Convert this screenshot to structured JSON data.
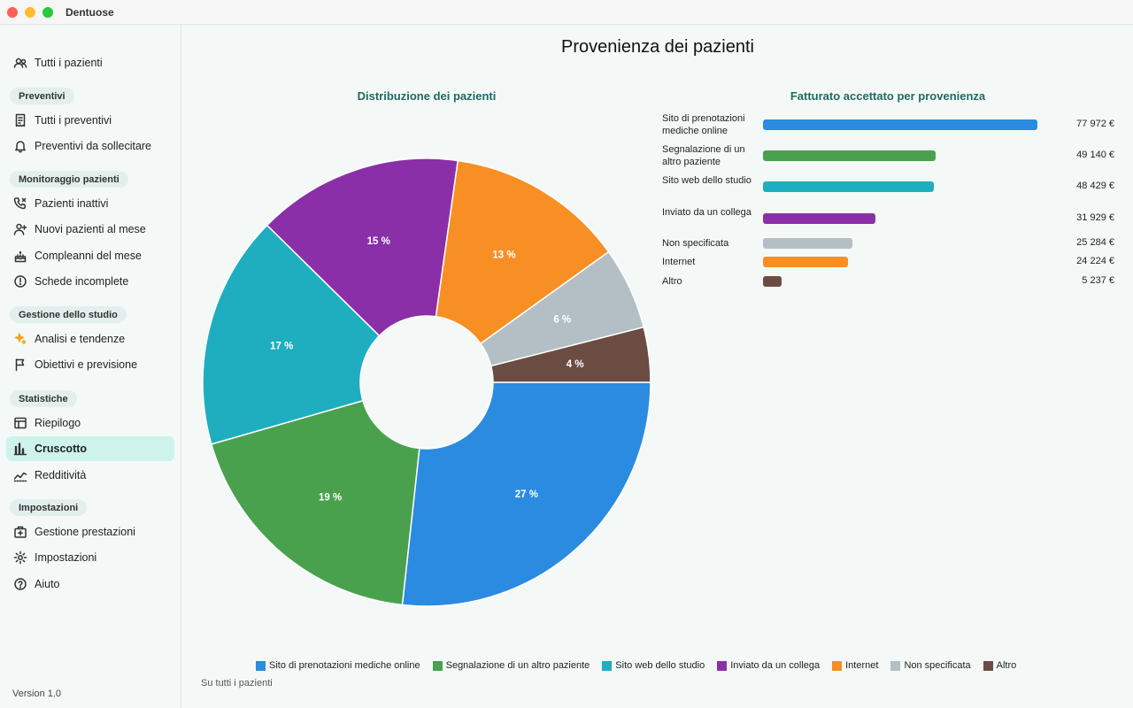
{
  "app": {
    "title": "Dentuose",
    "version": "Version 1.0"
  },
  "sidebar": {
    "top_item": {
      "label": "Tutti i pazienti",
      "icon": "people-icon"
    },
    "sections": [
      {
        "label": "Preventivi",
        "items": [
          {
            "label": "Tutti i preventivi",
            "icon": "receipt-icon"
          },
          {
            "label": "Preventivi da sollecitare",
            "icon": "bell-icon"
          }
        ]
      },
      {
        "label": "Monitoraggio pazienti",
        "items": [
          {
            "label": "Pazienti inattivi",
            "icon": "phone-icon"
          },
          {
            "label": "Nuovi pazienti al mese",
            "icon": "person-add-icon"
          },
          {
            "label": "Compleanni del mese",
            "icon": "cake-icon"
          },
          {
            "label": "Schede incomplete",
            "icon": "alert-circle-icon"
          }
        ]
      },
      {
        "label": "Gestione dello studio",
        "items": [
          {
            "label": "Analisi e tendenze",
            "icon": "sparkle-icon"
          },
          {
            "label": "Obiettivi e previsione",
            "icon": "flag-icon"
          }
        ]
      },
      {
        "label": "Statistiche",
        "items": [
          {
            "label": "Riepilogo",
            "icon": "table-icon"
          },
          {
            "label": "Cruscotto",
            "icon": "bar-chart-icon",
            "active": true
          },
          {
            "label": "Redditività",
            "icon": "trend-icon"
          }
        ]
      },
      {
        "label": "Impostazioni",
        "items": [
          {
            "label": "Gestione prestazioni",
            "icon": "medical-kit-icon"
          },
          {
            "label": "Impostazioni",
            "icon": "gear-icon"
          },
          {
            "label": "Aiuto",
            "icon": "help-icon"
          }
        ]
      }
    ]
  },
  "main": {
    "title": "Provenienza dei pazienti",
    "footnote": "Su tutti i pazienti"
  },
  "chart_data": [
    {
      "type": "pie",
      "title": "Distribuzione dei pazienti",
      "donut": true,
      "categories": [
        "Sito di prenotazioni mediche online",
        "Segnalazione di un altro paziente",
        "Sito web dello studio",
        "Inviato da un collega",
        "Internet",
        "Non specificata",
        "Altro"
      ],
      "values": [
        27,
        19,
        17,
        15,
        13,
        6,
        4
      ],
      "labels": [
        "27 %",
        "19 %",
        "17 %",
        "15 %",
        "13 %",
        "6 %",
        "4 %"
      ],
      "colors": [
        "#2a8be0",
        "#4aa14d",
        "#1eaec0",
        "#8b2fa8",
        "#f88f25",
        "#b3bfc4",
        "#6b4c43"
      ],
      "legend": "bottom"
    },
    {
      "type": "bar",
      "orientation": "horizontal",
      "title": "Fatturato accettato per provenienza",
      "categories": [
        "Sito di prenotazioni mediche online",
        "Segnalazione di un altro paziente",
        "Sito web dello studio",
        "Inviato da un collega",
        "Non specificata",
        "Internet",
        "Altro"
      ],
      "values": [
        77972,
        49140,
        48429,
        31929,
        25284,
        24224,
        5237
      ],
      "value_labels": [
        "77 972 €",
        "49 140 €",
        "48 429 €",
        "31 929 €",
        "25 284 €",
        "24 224 €",
        "5 237 €"
      ],
      "colors": [
        "#2a8be0",
        "#4aa14d",
        "#1eaec0",
        "#8b2fa8",
        "#b3bfc4",
        "#f88f25",
        "#6b4c43"
      ]
    }
  ]
}
